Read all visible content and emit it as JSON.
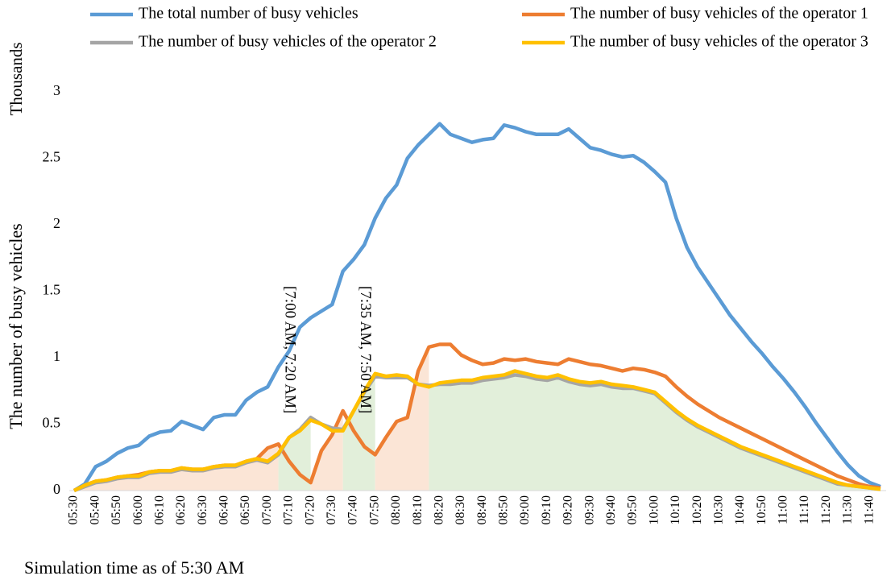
{
  "chart_data": {
    "type": "line",
    "y_label": "The number of busy vehicles",
    "y_unit": "Thousands",
    "x_label": "Simulation time as of 5:30 AM",
    "x": [
      "05:30",
      "05:35",
      "05:40",
      "05:45",
      "05:50",
      "05:55",
      "06:00",
      "06:05",
      "06:10",
      "06:15",
      "06:20",
      "06:25",
      "06:30",
      "06:35",
      "06:40",
      "06:45",
      "06:50",
      "06:55",
      "07:00",
      "07:05",
      "07:10",
      "07:15",
      "07:20",
      "07:25",
      "07:30",
      "07:35",
      "07:40",
      "07:45",
      "07:50",
      "07:55",
      "08:00",
      "08:05",
      "08:10",
      "08:15",
      "08:20",
      "08:25",
      "08:30",
      "08:35",
      "08:40",
      "08:45",
      "08:50",
      "08:55",
      "09:00",
      "09:05",
      "09:10",
      "09:15",
      "09:20",
      "09:25",
      "09:30",
      "09:35",
      "09:40",
      "09:45",
      "09:50",
      "09:55",
      "10:00",
      "10:05",
      "10:10",
      "10:15",
      "10:20",
      "10:25",
      "10:30",
      "10:35",
      "10:40",
      "10:45",
      "10:50",
      "10:55",
      "11:00",
      "11:05",
      "11:10",
      "11:15",
      "11:20",
      "11:25",
      "11:30",
      "11:35",
      "11:40",
      "11:45"
    ],
    "ylim": [
      0,
      3
    ],
    "yticks": [
      0,
      0.5,
      1,
      1.5,
      2,
      2.5,
      3
    ],
    "series": [
      {
        "name": "The total number of busy vehicles",
        "color": "#5b9bd5",
        "values": [
          0,
          0.05,
          0.18,
          0.22,
          0.28,
          0.32,
          0.34,
          0.41,
          0.44,
          0.45,
          0.52,
          0.49,
          0.46,
          0.55,
          0.57,
          0.57,
          0.68,
          0.74,
          0.78,
          0.93,
          1.05,
          1.23,
          1.3,
          1.35,
          1.4,
          1.65,
          1.74,
          1.85,
          2.05,
          2.2,
          2.3,
          2.5,
          2.6,
          2.68,
          2.76,
          2.68,
          2.65,
          2.62,
          2.64,
          2.65,
          2.75,
          2.73,
          2.7,
          2.68,
          2.68,
          2.68,
          2.72,
          2.65,
          2.58,
          2.56,
          2.53,
          2.51,
          2.52,
          2.47,
          2.4,
          2.32,
          2.05,
          1.83,
          1.68,
          1.56,
          1.44,
          1.32,
          1.22,
          1.12,
          1.03,
          0.93,
          0.84,
          0.74,
          0.63,
          0.51,
          0.4,
          0.29,
          0.19,
          0.11,
          0.06,
          0.03
        ]
      },
      {
        "name": "The number of busy vehicles of the operator 1",
        "color": "#ed7d31",
        "values": [
          0,
          0.04,
          0.07,
          0.08,
          0.1,
          0.11,
          0.12,
          0.14,
          0.15,
          0.15,
          0.17,
          0.16,
          0.16,
          0.18,
          0.19,
          0.19,
          0.22,
          0.24,
          0.32,
          0.35,
          0.22,
          0.12,
          0.06,
          0.3,
          0.42,
          0.6,
          0.45,
          0.33,
          0.27,
          0.4,
          0.52,
          0.55,
          0.9,
          1.08,
          1.1,
          1.1,
          1.02,
          0.98,
          0.95,
          0.96,
          0.99,
          0.98,
          0.99,
          0.97,
          0.96,
          0.95,
          0.99,
          0.97,
          0.95,
          0.94,
          0.92,
          0.9,
          0.92,
          0.91,
          0.89,
          0.86,
          0.78,
          0.71,
          0.65,
          0.6,
          0.55,
          0.51,
          0.47,
          0.43,
          0.39,
          0.35,
          0.31,
          0.27,
          0.23,
          0.19,
          0.15,
          0.11,
          0.08,
          0.05,
          0.03,
          0.02
        ]
      },
      {
        "name": "The number of busy vehicles of the operator 2",
        "color": "#a5a5a5",
        "values": [
          0,
          0.03,
          0.06,
          0.07,
          0.09,
          0.1,
          0.1,
          0.13,
          0.14,
          0.14,
          0.16,
          0.15,
          0.15,
          0.17,
          0.18,
          0.18,
          0.21,
          0.23,
          0.21,
          0.27,
          0.4,
          0.46,
          0.55,
          0.5,
          0.47,
          0.46,
          0.6,
          0.74,
          0.86,
          0.85,
          0.85,
          0.85,
          0.8,
          0.79,
          0.8,
          0.8,
          0.81,
          0.81,
          0.83,
          0.84,
          0.85,
          0.87,
          0.86,
          0.84,
          0.83,
          0.85,
          0.82,
          0.8,
          0.79,
          0.8,
          0.78,
          0.77,
          0.77,
          0.75,
          0.73,
          0.66,
          0.59,
          0.53,
          0.48,
          0.44,
          0.4,
          0.36,
          0.32,
          0.29,
          0.26,
          0.23,
          0.2,
          0.17,
          0.14,
          0.11,
          0.08,
          0.05,
          0.04,
          0.03,
          0.02,
          0.01
        ]
      },
      {
        "name": "The number of busy vehicles of the operator 3",
        "color": "#ffc000",
        "values": [
          0,
          0.04,
          0.07,
          0.08,
          0.1,
          0.11,
          0.11,
          0.14,
          0.15,
          0.15,
          0.17,
          0.16,
          0.16,
          0.18,
          0.19,
          0.19,
          0.22,
          0.24,
          0.22,
          0.28,
          0.4,
          0.45,
          0.53,
          0.5,
          0.45,
          0.45,
          0.6,
          0.75,
          0.88,
          0.86,
          0.87,
          0.86,
          0.8,
          0.78,
          0.81,
          0.82,
          0.83,
          0.83,
          0.85,
          0.86,
          0.87,
          0.9,
          0.88,
          0.86,
          0.85,
          0.87,
          0.84,
          0.82,
          0.81,
          0.82,
          0.8,
          0.79,
          0.78,
          0.76,
          0.74,
          0.67,
          0.6,
          0.54,
          0.49,
          0.45,
          0.41,
          0.37,
          0.33,
          0.3,
          0.27,
          0.24,
          0.21,
          0.18,
          0.15,
          0.12,
          0.09,
          0.06,
          0.04,
          0.03,
          0.02,
          0.01
        ]
      }
    ],
    "regions": [
      {
        "from": "05:30",
        "to": "07:05",
        "series": 1,
        "color": "#fbe5d6"
      },
      {
        "from": "07:05",
        "to": "07:20",
        "series": 3,
        "color": "#e2efda"
      },
      {
        "from": "07:20",
        "to": "07:35",
        "series": 1,
        "color": "#fbe5d6"
      },
      {
        "from": "07:35",
        "to": "07:50",
        "series": 3,
        "color": "#e2efda"
      },
      {
        "from": "07:50",
        "to": "08:15",
        "series": 1,
        "color": "#fbe5d6"
      },
      {
        "from": "08:15",
        "to": "11:45",
        "series": 3,
        "color": "#e2efda"
      }
    ],
    "annotations": [
      {
        "text": "[7:00 AM, 7:20 AM]",
        "x": "07:10"
      },
      {
        "text": "[7:35 AM, 7:50 AM]",
        "x": "07:45"
      }
    ]
  }
}
